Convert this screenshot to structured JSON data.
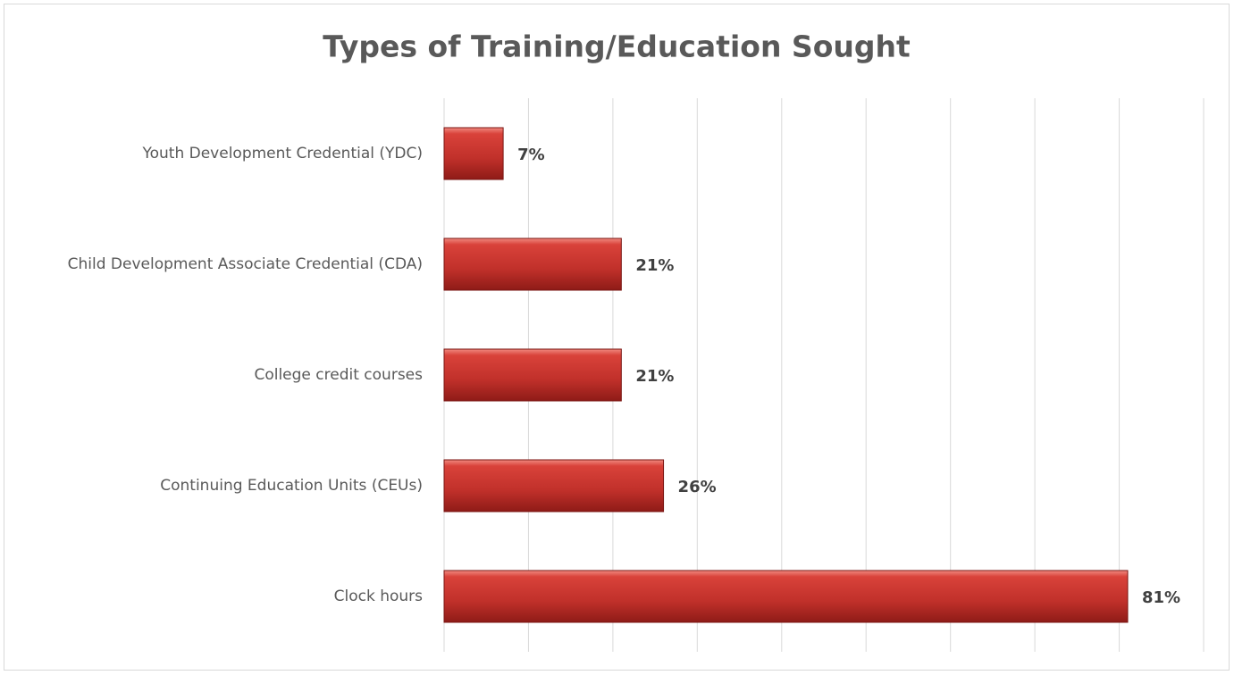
{
  "chart_data": {
    "type": "bar",
    "orientation": "horizontal",
    "title": "Types of Training/Education Sought",
    "categories": [
      "Youth Development Credential (YDC)",
      "Child Development Associate Credential (CDA)",
      "College credit courses",
      "Continuing Education Units (CEUs)",
      "Clock hours"
    ],
    "values": [
      7,
      21,
      21,
      26,
      81
    ],
    "value_labels": [
      "7%",
      "21%",
      "21%",
      "26%",
      "81%"
    ],
    "color": "#c0392b",
    "xlim": [
      0,
      90
    ],
    "xticks": [
      0,
      10,
      20,
      30,
      40,
      50,
      60,
      70,
      80,
      90
    ],
    "grid": true
  }
}
